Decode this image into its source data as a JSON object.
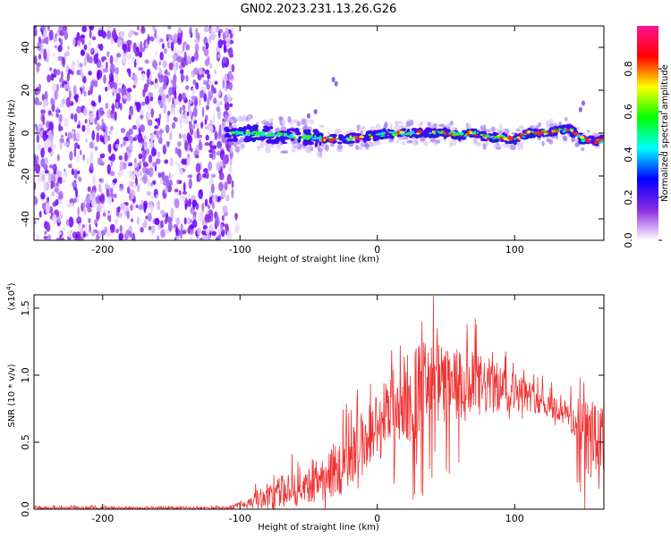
{
  "title": "GN02.2023.231.13.26.G26",
  "chart_data": [
    {
      "type": "heatmap",
      "xlabel": "Height of straight line (km)",
      "ylabel": "Frequency (Hz)",
      "xlim": [
        -250,
        165
      ],
      "ylim": [
        -50,
        50
      ],
      "x_ticks": [
        -200,
        -100,
        0,
        100
      ],
      "y_ticks": [
        -40,
        -20,
        0,
        20,
        40
      ],
      "noise_region_x": [
        -250,
        -105
      ],
      "signal_line": {
        "x": [
          -110,
          -90,
          -70,
          -50,
          -30,
          -10,
          0,
          10,
          20,
          30,
          40,
          50,
          60,
          70,
          80,
          90,
          100,
          110,
          120,
          130,
          140,
          150,
          160,
          165
        ],
        "y": [
          0,
          0,
          -1,
          -2,
          -3,
          -2,
          -1,
          0,
          0,
          0,
          0,
          0,
          -1,
          0,
          -2,
          -2,
          -3,
          0,
          0,
          1,
          2,
          -3,
          -4,
          -3
        ]
      },
      "colorbar": {
        "label": "Normalized spectral amplitude",
        "range": [
          0,
          1
        ],
        "ticks": [
          "0.0",
          "0.2",
          "0.4",
          "0.6",
          "0.8"
        ],
        "colors": [
          "#ffffff",
          "#8a2be2",
          "#0000ff",
          "#00ffff",
          "#00ff00",
          "#ffff00",
          "#ff0000",
          "#ff1493"
        ]
      }
    },
    {
      "type": "line",
      "xlabel": "Height of straight line (km)",
      "ylabel": "SNR (10 * v/v)",
      "y_multiplier": "(x10",
      "y_multiplier_exp": "4",
      "y_multiplier_close": ")",
      "xlim": [
        -250,
        165
      ],
      "ylim": [
        0,
        1.6
      ],
      "x_ticks": [
        -200,
        -100,
        0,
        100
      ],
      "y_ticks": [
        "0.0",
        "0.5",
        "1.0",
        "1.5"
      ],
      "color": "#ee3333",
      "envelope": {
        "x": [
          -250,
          -200,
          -150,
          -110,
          -100,
          -90,
          -80,
          -70,
          -60,
          -50,
          -40,
          -30,
          -20,
          -10,
          0,
          10,
          20,
          30,
          40,
          50,
          60,
          70,
          80,
          90,
          100,
          110,
          120,
          130,
          140,
          150,
          160,
          165
        ],
        "mean": [
          0.01,
          0.01,
          0.01,
          0.01,
          0.03,
          0.06,
          0.1,
          0.13,
          0.16,
          0.2,
          0.24,
          0.3,
          0.4,
          0.5,
          0.62,
          0.75,
          0.82,
          0.88,
          0.92,
          0.92,
          0.9,
          0.9,
          0.92,
          0.9,
          0.88,
          0.85,
          0.8,
          0.75,
          0.7,
          0.55,
          0.5,
          0.5
        ],
        "spread": [
          0.01,
          0.01,
          0.01,
          0.01,
          0.03,
          0.06,
          0.1,
          0.12,
          0.14,
          0.16,
          0.18,
          0.22,
          0.25,
          0.25,
          0.28,
          0.3,
          0.35,
          0.38,
          0.35,
          0.3,
          0.3,
          0.28,
          0.22,
          0.18,
          0.15,
          0.12,
          0.1,
          0.1,
          0.1,
          0.3,
          0.3,
          0.25
        ]
      }
    }
  ]
}
